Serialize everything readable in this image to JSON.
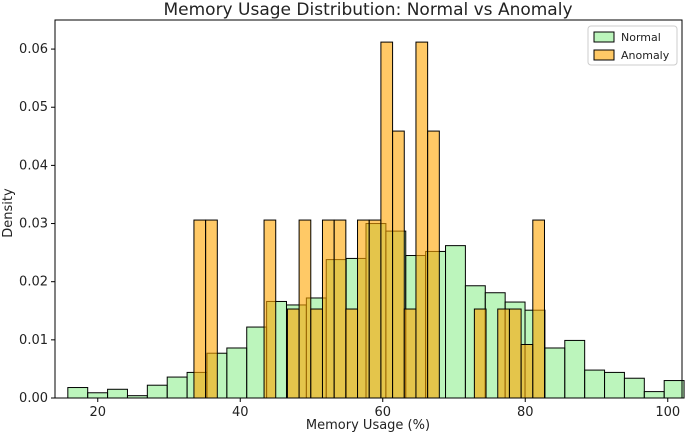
{
  "chart_data": {
    "type": "bar",
    "title": "Memory Usage Distribution: Normal vs Anomaly",
    "xlabel": "Memory Usage (%)",
    "ylabel": "Density",
    "xlim": [
      14,
      102
    ],
    "ylim": [
      0,
      0.065
    ],
    "x_ticks": [
      20,
      40,
      60,
      80,
      100
    ],
    "y_ticks": [
      0.0,
      0.01,
      0.02,
      0.03,
      0.04,
      0.05,
      0.06
    ],
    "grid": false,
    "legend_position": "top-right",
    "series": [
      {
        "name": "Normal",
        "color": "#90ee90",
        "bin_start": 15.8,
        "bin_width": 2.79,
        "values": [
          0.0018,
          0.0009,
          0.0015,
          0.0004,
          0.0022,
          0.0036,
          0.0044,
          0.0077,
          0.0086,
          0.0122,
          0.0166,
          0.016,
          0.0172,
          0.0238,
          0.024,
          0.03,
          0.0287,
          0.0245,
          0.0252,
          0.0262,
          0.0193,
          0.0181,
          0.0165,
          0.0151,
          0.0086,
          0.0099,
          0.0048,
          0.0044,
          0.0034,
          0.0011,
          0.003
        ]
      },
      {
        "name": "Anomaly",
        "color": "#ffa500",
        "bin_start": 33.5,
        "bin_width": 1.64,
        "values": [
          0.0306,
          0.0306,
          0,
          0,
          0,
          0,
          0.0306,
          0,
          0.0153,
          0.0306,
          0.0153,
          0.0306,
          0.0306,
          0.0153,
          0.0306,
          0.0306,
          0.0612,
          0.0459,
          0.0153,
          0.0612,
          0.0459,
          0,
          0,
          0,
          0.0153,
          0,
          0.0153,
          0.0153,
          0.0092,
          0.0306
        ]
      }
    ]
  }
}
